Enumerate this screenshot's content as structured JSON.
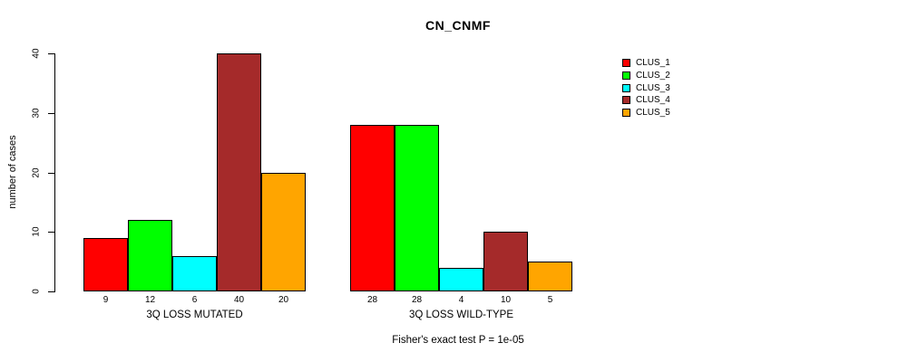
{
  "title": "CN_CNMF",
  "footer": "Fisher's exact test P = 1e-05",
  "chart_data": {
    "type": "bar",
    "title": "CN_CNMF",
    "ylabel": "number of cases",
    "xlabel": "",
    "ylim": [
      0,
      40
    ],
    "yticks": [
      0,
      10,
      20,
      30,
      40
    ],
    "grid": false,
    "legend_position": "right",
    "bar_value_labels": true,
    "categories": [
      "3Q LOSS MUTATED",
      "3Q LOSS WILD-TYPE"
    ],
    "series": [
      {
        "name": "CLUS_1",
        "color": "#FF0000",
        "values": [
          9,
          28
        ]
      },
      {
        "name": "CLUS_2",
        "color": "#00FF00",
        "values": [
          12,
          28
        ]
      },
      {
        "name": "CLUS_3",
        "color": "#00FFFF",
        "values": [
          6,
          4
        ]
      },
      {
        "name": "CLUS_4",
        "color": "#A52A2A",
        "values": [
          40,
          10
        ]
      },
      {
        "name": "CLUS_5",
        "color": "#FFA500",
        "values": [
          20,
          5
        ]
      }
    ],
    "annotation": "Fisher's exact test P = 1e-05"
  }
}
